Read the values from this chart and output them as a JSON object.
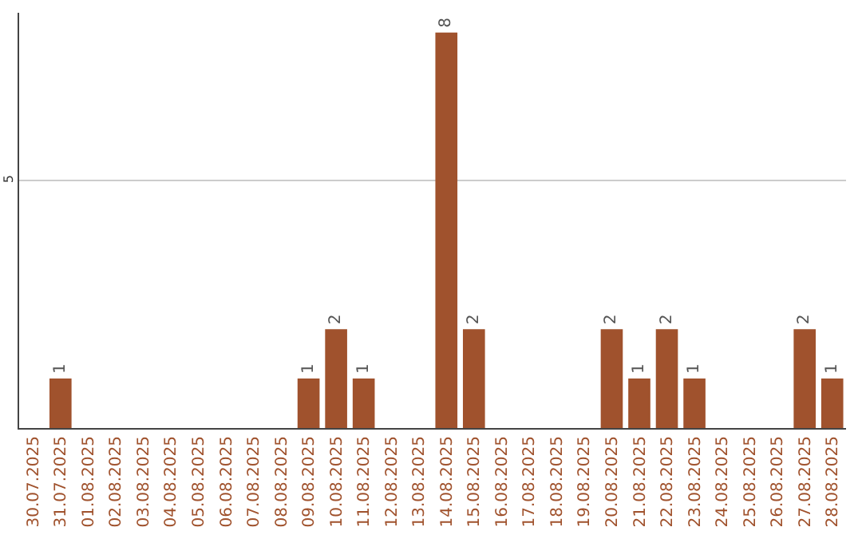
{
  "chart_data": {
    "type": "bar",
    "categories": [
      "30.07.2025",
      "31.07.2025",
      "01.08.2025",
      "02.08.2025",
      "03.08.2025",
      "04.08.2025",
      "05.08.2025",
      "06.08.2025",
      "07.08.2025",
      "08.08.2025",
      "09.08.2025",
      "10.08.2025",
      "11.08.2025",
      "12.08.2025",
      "13.08.2025",
      "14.08.2025",
      "15.08.2025",
      "16.08.2025",
      "17.08.2025",
      "18.08.2025",
      "19.08.2025",
      "20.08.2025",
      "21.08.2025",
      "22.08.2025",
      "23.08.2025",
      "24.08.2025",
      "25.08.2025",
      "26.08.2025",
      "27.08.2025",
      "28.08.2025"
    ],
    "values": [
      0,
      1,
      0,
      0,
      0,
      0,
      0,
      0,
      0,
      0,
      1,
      2,
      1,
      0,
      0,
      8,
      2,
      0,
      0,
      0,
      0,
      2,
      1,
      2,
      1,
      0,
      0,
      0,
      2,
      1
    ],
    "value_labels": [
      null,
      "1",
      null,
      null,
      null,
      null,
      null,
      null,
      null,
      null,
      "1",
      "2",
      "1",
      null,
      null,
      "8",
      "2",
      null,
      null,
      null,
      null,
      "2",
      "1",
      "2",
      "1",
      null,
      null,
      null,
      "2",
      "1"
    ],
    "color": "#a0522d",
    "ylim": [
      0,
      8.4
    ],
    "yticks": [
      0,
      5
    ],
    "grid": "y",
    "legend": false
  }
}
